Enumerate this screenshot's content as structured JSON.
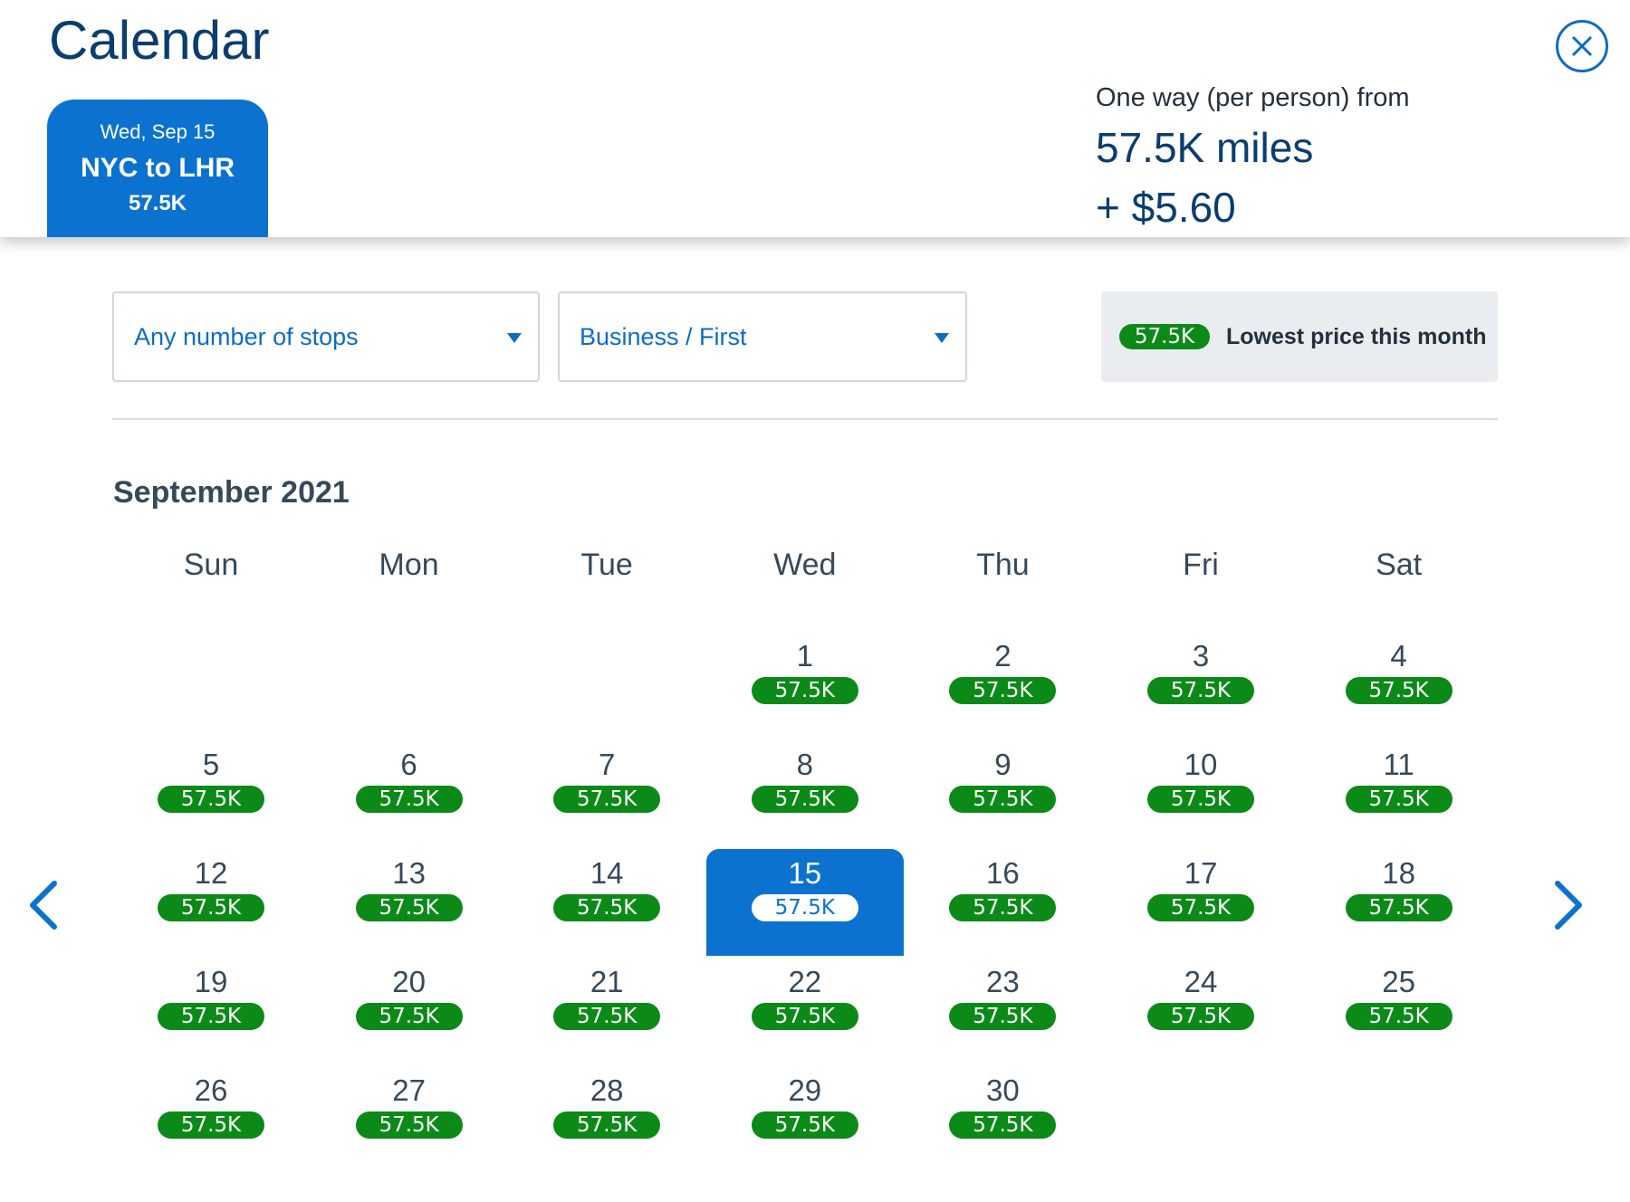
{
  "header": {
    "title": "Calendar",
    "flight_tab": {
      "date": "Wed, Sep 15",
      "route": "NYC to LHR",
      "price": "57.5K"
    },
    "fare_summary": {
      "label": "One way (per person) from",
      "miles": "57.5K miles",
      "fees": "+ $5.60"
    }
  },
  "filters": {
    "stops": "Any number of stops",
    "cabin": "Business / First",
    "legend_badge": "57.5K",
    "legend_text": "Lowest price this month"
  },
  "calendar": {
    "month": "September 2021",
    "weekdays": [
      "Sun",
      "Mon",
      "Tue",
      "Wed",
      "Thu",
      "Fri",
      "Sat"
    ],
    "first_weekday_index": 3,
    "selected_day": 15,
    "days": [
      {
        "day": "1",
        "price": "57.5K"
      },
      {
        "day": "2",
        "price": "57.5K"
      },
      {
        "day": "3",
        "price": "57.5K"
      },
      {
        "day": "4",
        "price": "57.5K"
      },
      {
        "day": "5",
        "price": "57.5K"
      },
      {
        "day": "6",
        "price": "57.5K"
      },
      {
        "day": "7",
        "price": "57.5K"
      },
      {
        "day": "8",
        "price": "57.5K"
      },
      {
        "day": "9",
        "price": "57.5K"
      },
      {
        "day": "10",
        "price": "57.5K"
      },
      {
        "day": "11",
        "price": "57.5K"
      },
      {
        "day": "12",
        "price": "57.5K"
      },
      {
        "day": "13",
        "price": "57.5K"
      },
      {
        "day": "14",
        "price": "57.5K"
      },
      {
        "day": "15",
        "price": "57.5K"
      },
      {
        "day": "16",
        "price": "57.5K"
      },
      {
        "day": "17",
        "price": "57.5K"
      },
      {
        "day": "18",
        "price": "57.5K"
      },
      {
        "day": "19",
        "price": "57.5K"
      },
      {
        "day": "20",
        "price": "57.5K"
      },
      {
        "day": "21",
        "price": "57.5K"
      },
      {
        "day": "22",
        "price": "57.5K"
      },
      {
        "day": "23",
        "price": "57.5K"
      },
      {
        "day": "24",
        "price": "57.5K"
      },
      {
        "day": "25",
        "price": "57.5K"
      },
      {
        "day": "26",
        "price": "57.5K"
      },
      {
        "day": "27",
        "price": "57.5K"
      },
      {
        "day": "28",
        "price": "57.5K"
      },
      {
        "day": "29",
        "price": "57.5K"
      },
      {
        "day": "30",
        "price": "57.5K"
      }
    ]
  },
  "icons": {
    "close": "close-icon",
    "prev": "chevron-left-icon",
    "next": "chevron-right-icon",
    "dropdown": "caret-down-icon"
  },
  "colors": {
    "primary_blue": "#0b72d0",
    "dark_blue": "#0a3d70",
    "price_green": "#0b8a17",
    "text_gray": "#36495a",
    "legend_bg": "#e9edf0"
  }
}
